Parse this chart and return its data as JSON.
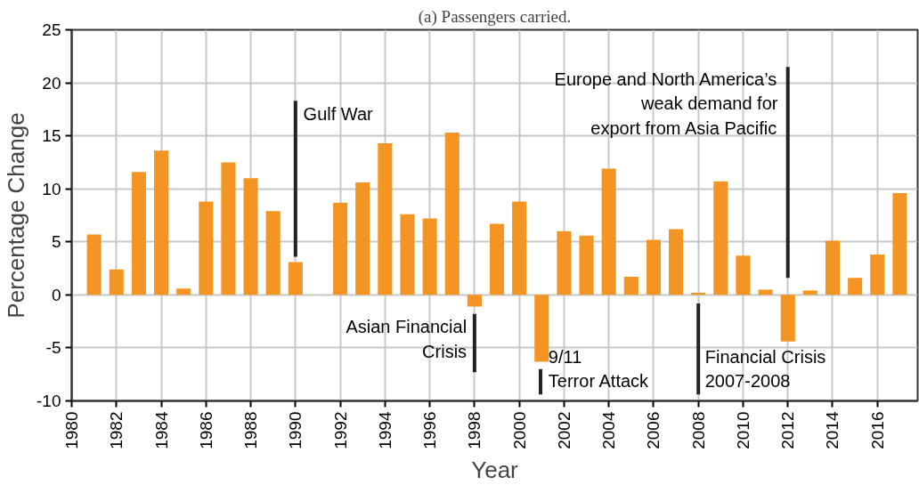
{
  "chart_data": {
    "type": "bar",
    "title": "(a) Passengers carried.",
    "xlabel": "Year",
    "ylabel": "Percentage Change",
    "x": [
      1981,
      1982,
      1983,
      1984,
      1985,
      1986,
      1987,
      1988,
      1989,
      1990,
      1991,
      1992,
      1993,
      1994,
      1995,
      1996,
      1997,
      1998,
      1999,
      2000,
      2001,
      2002,
      2003,
      2004,
      2005,
      2006,
      2007,
      2008,
      2009,
      2010,
      2011,
      2012,
      2013,
      2014,
      2015,
      2016,
      2017
    ],
    "series": [
      {
        "color": "#f39423",
        "values": [
          5.7,
          2.4,
          11.6,
          13.6,
          0.6,
          8.8,
          12.5,
          11.0,
          7.9,
          3.1,
          null,
          8.7,
          10.6,
          14.3,
          7.6,
          7.2,
          15.3,
          -1.1,
          6.7,
          8.8,
          -6.3,
          6.0,
          5.6,
          11.9,
          1.7,
          5.2,
          6.2,
          0.2,
          10.7,
          3.7,
          0.5,
          -4.4,
          0.4,
          5.1,
          1.6,
          3.8,
          9.6
        ]
      }
    ],
    "xlim": [
      1980,
      2017.8
    ],
    "xticks": [
      1980,
      1982,
      1984,
      1986,
      1988,
      1990,
      1992,
      1994,
      1996,
      1998,
      2000,
      2002,
      2004,
      2006,
      2008,
      2010,
      2012,
      2014,
      2016
    ],
    "ylim": [
      -10,
      25
    ],
    "yticks": [
      -10,
      -5,
      0,
      5,
      10,
      15,
      20,
      25
    ],
    "grid": true,
    "annotations": [
      "Gulf War",
      "Asian Financial\nCrisis",
      "9/11\nTerror Attack",
      "Financial Crisis\n2007-2008",
      "Europe and North America’s\nweak demand for\nexport from Asia Pacific"
    ]
  }
}
